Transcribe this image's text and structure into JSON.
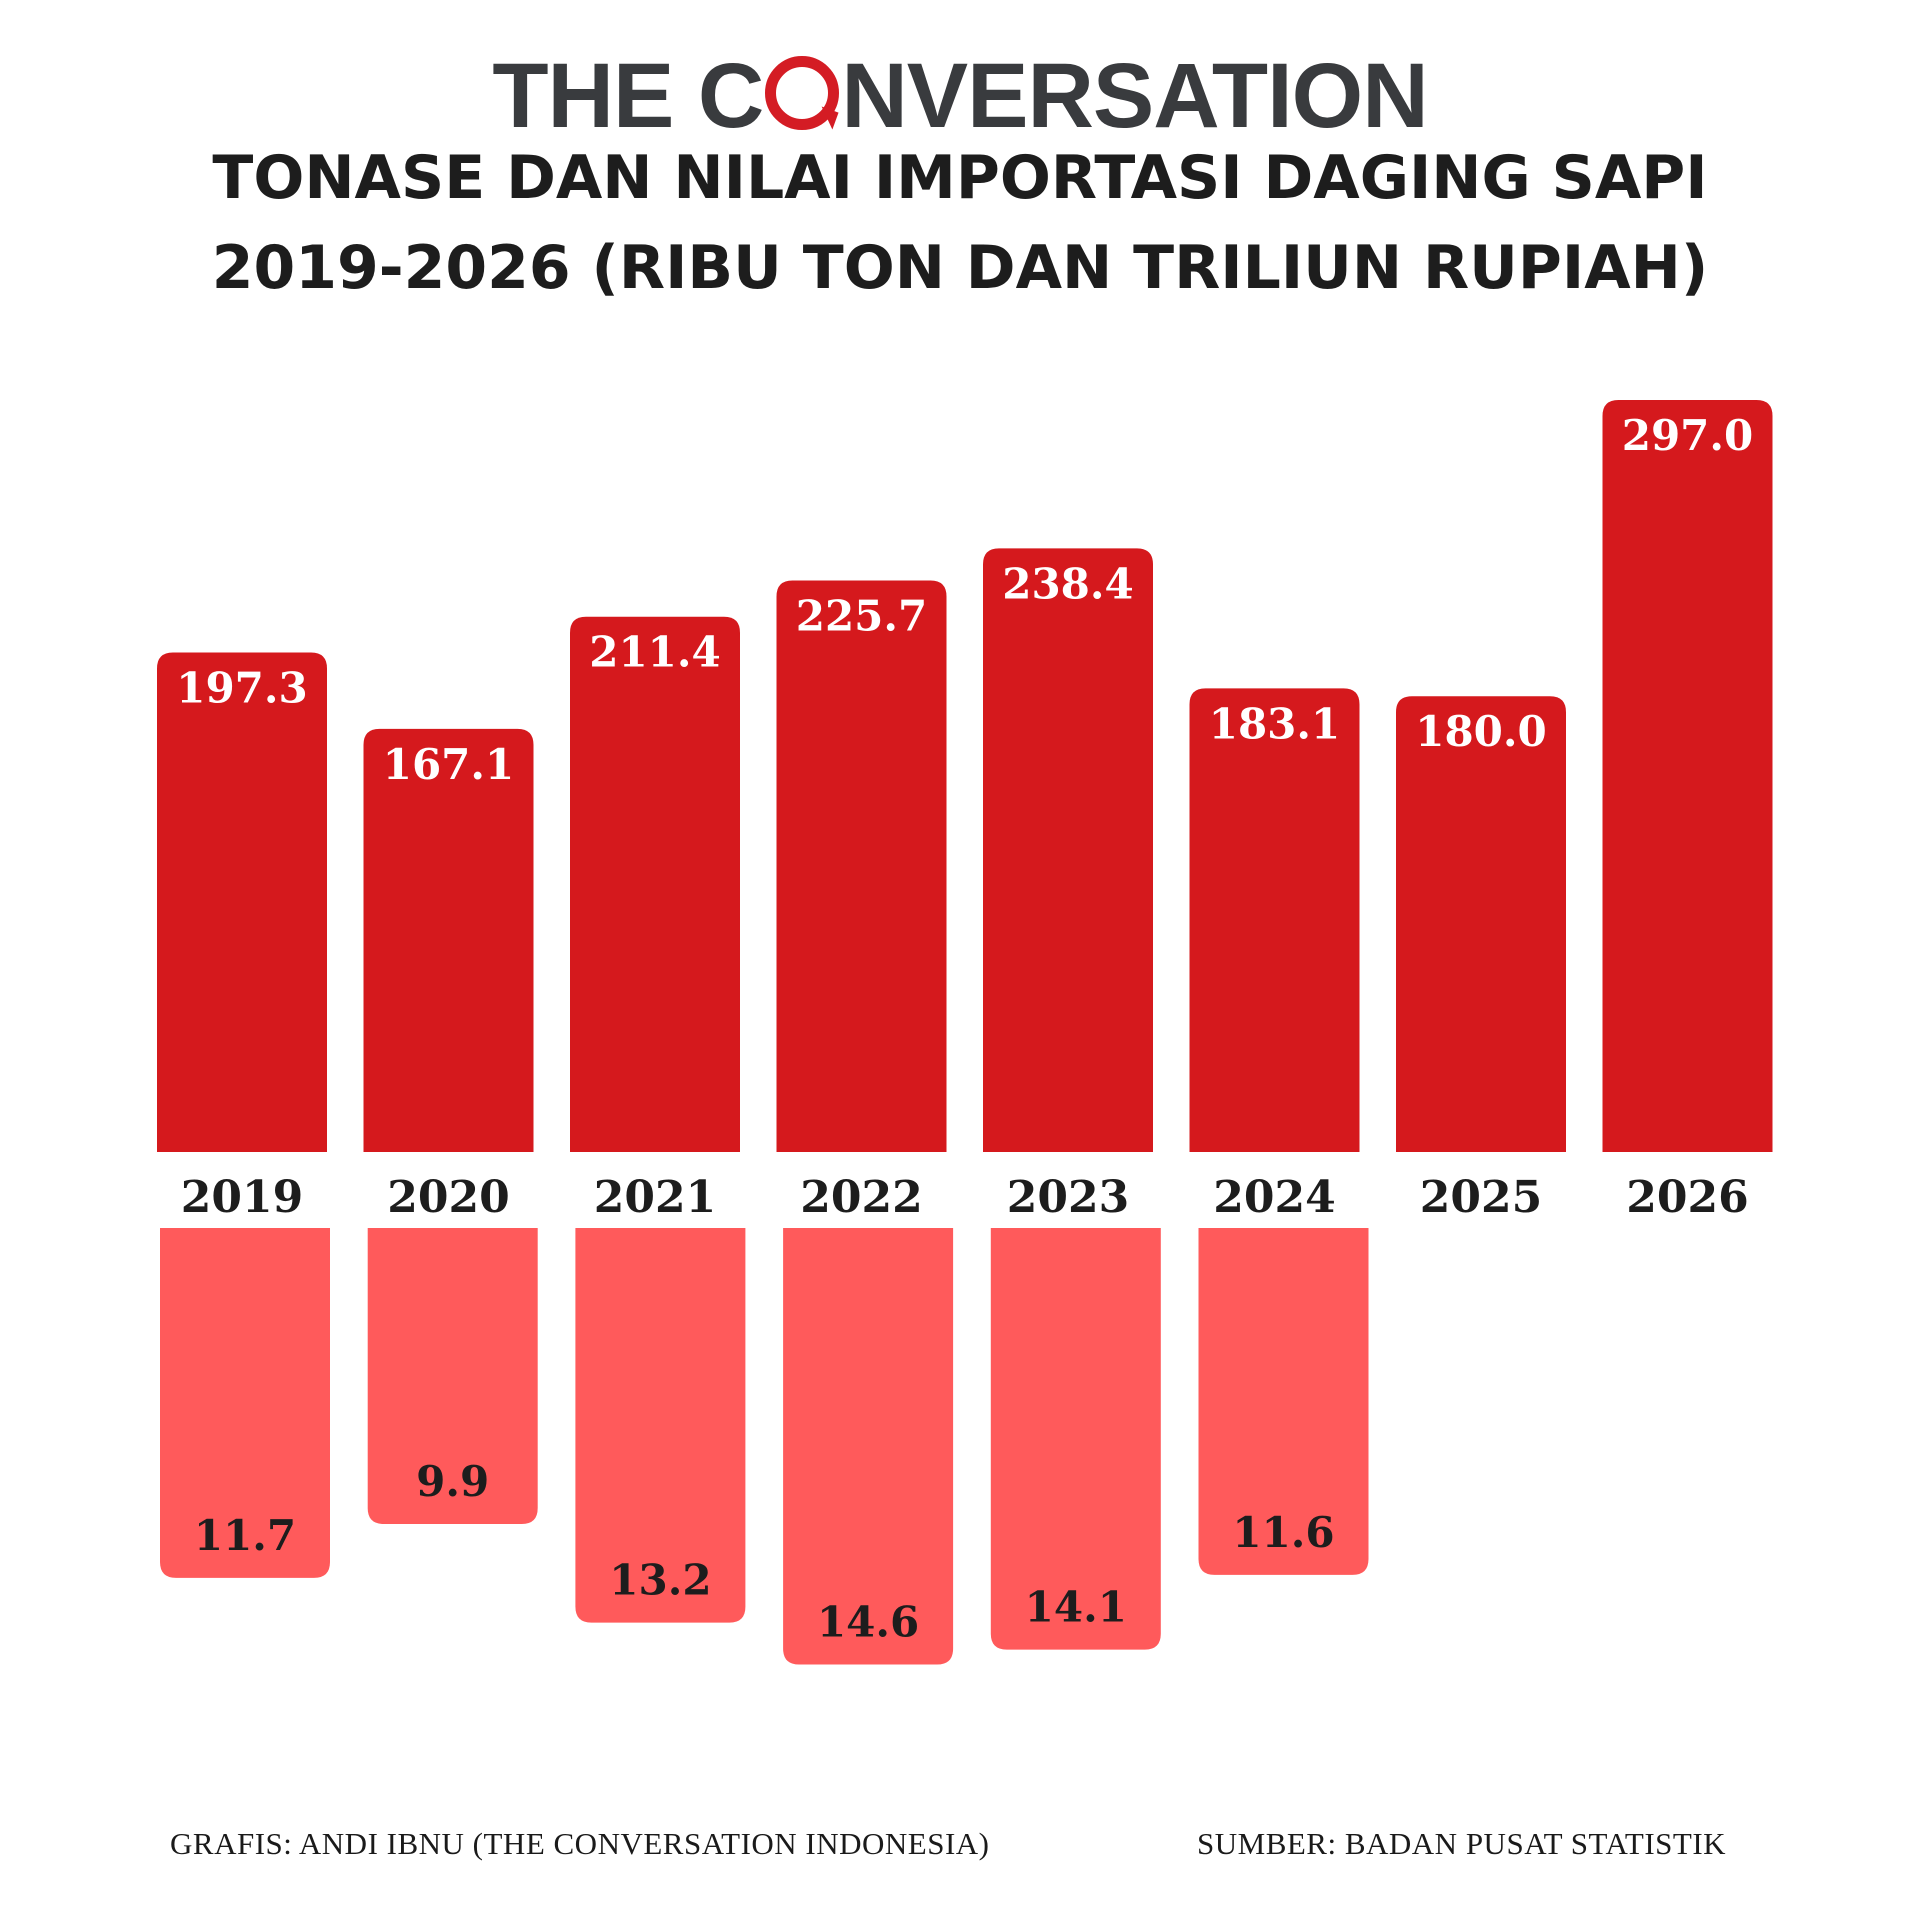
{
  "brand": {
    "before": "THE C",
    "after": "NVERSATION"
  },
  "title": {
    "line1": "TONASE DAN NILAI IMPORTASI DAGING SAPI",
    "line2": "2019-2026 (RIBU TON DAN TRILIUN RUPIAH)"
  },
  "footer": {
    "credit": "GRAFIS: ANDI IBNU (THE CONVERSATION INDONESIA)",
    "source": "SUMBER: BADAN PUSAT STATISTIK"
  },
  "colors": {
    "tonnage_bar": "#d5191d",
    "value_bar": "#ff5a5b",
    "text_dark": "#1d1d1d",
    "label_on_bar": "#ffffff"
  },
  "chart_data": {
    "type": "bar",
    "categories": [
      "2019",
      "2020",
      "2021",
      "2022",
      "2023",
      "2024",
      "2025",
      "2026"
    ],
    "series": [
      {
        "values": [
          197.3,
          167.1,
          211.4,
          225.7,
          238.4,
          183.1,
          180.0,
          297.0
        ],
        "labels": [
          "197.3",
          "167.1",
          "211.4",
          "225.7",
          "238.4",
          "183.1",
          "180.0",
          "297.0"
        ]
      },
      {
        "values": [
          11.7,
          9.9,
          13.2,
          14.6,
          14.1,
          11.6,
          null,
          null
        ],
        "labels": [
          "11.7",
          "9.9",
          "13.2",
          "14.6",
          "14.1",
          "11.6",
          "",
          ""
        ]
      }
    ],
    "grid": false,
    "legend": "none"
  }
}
